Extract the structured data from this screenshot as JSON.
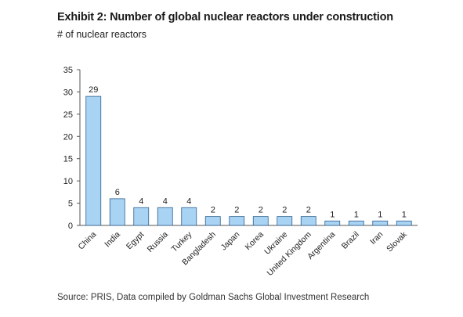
{
  "title": "Exhibit 2: Number of global nuclear reactors under construction",
  "subtitle": "# of nuclear reactors",
  "source": "Source: PRIS, Data compiled by Goldman Sachs Global Investment Research",
  "colors": {
    "bar_fill": "#a9d3f3",
    "bar_stroke": "#2d5f8f",
    "axis": "#555555"
  },
  "chart_data": {
    "type": "bar",
    "title": "Exhibit 2: Number of global nuclear reactors under construction",
    "ylabel": "# of nuclear reactors",
    "xlabel": "",
    "ylim": [
      0,
      35
    ],
    "yticks": [
      0,
      5,
      10,
      15,
      20,
      25,
      30,
      35
    ],
    "grid": false,
    "categories": [
      "China",
      "India",
      "Egypt",
      "Russia",
      "Turkey",
      "Bangladesh",
      "Japan",
      "Korea",
      "Ukraine",
      "United Kingdom",
      "Argentina",
      "Brazil",
      "Iran",
      "Slovak"
    ],
    "values": [
      29,
      6,
      4,
      4,
      4,
      2,
      2,
      2,
      2,
      2,
      1,
      1,
      1,
      1
    ]
  }
}
